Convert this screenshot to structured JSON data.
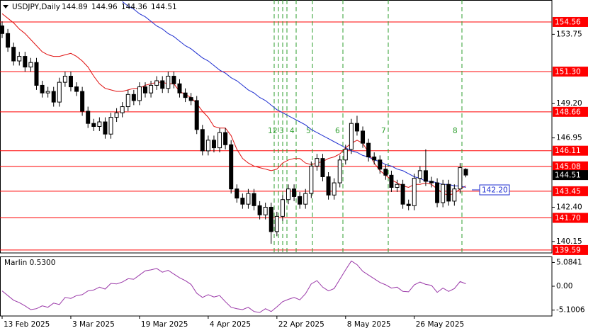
{
  "header": {
    "symbol": "USDJPY,Daily",
    "ohlc": [
      144.89,
      144.96,
      144.36,
      144.51
    ]
  },
  "chart_data": [
    {
      "type": "candlestick",
      "categories": [
        "13 Feb 2025",
        null,
        null,
        null,
        null,
        null,
        null,
        null,
        null,
        null,
        null,
        null,
        "3 Mar 2025",
        null,
        null,
        null,
        null,
        null,
        null,
        null,
        null,
        null,
        null,
        null,
        "19 Mar 2025",
        null,
        null,
        null,
        null,
        null,
        null,
        null,
        null,
        null,
        null,
        null,
        "4 Apr 2025",
        null,
        null,
        null,
        null,
        null,
        null,
        null,
        null,
        null,
        null,
        null,
        "22 Apr 2025",
        null,
        null,
        null,
        null,
        null,
        null,
        null,
        null,
        null,
        null,
        null,
        "8 May 2025",
        null,
        null,
        null,
        null,
        null,
        null,
        null,
        null,
        null,
        null,
        null,
        "26 May 2025",
        null,
        null,
        null,
        null,
        null,
        null,
        null,
        null,
        null
      ],
      "open": [
        154.3,
        153.8,
        152.9,
        152.0,
        152.3,
        151.6,
        151.9,
        150.4,
        149.9,
        150.0,
        149.3,
        150.6,
        151.0,
        150.3,
        150.0,
        148.7,
        147.9,
        147.7,
        148.0,
        147.2,
        148.3,
        148.6,
        149.0,
        149.8,
        149.4,
        150.3,
        149.9,
        150.4,
        150.7,
        150.2,
        151.0,
        150.5,
        149.9,
        149.6,
        149.4,
        147.5,
        146.1,
        146.8,
        146.3,
        147.3,
        146.5,
        143.6,
        143.0,
        142.6,
        143.3,
        142.5,
        141.9,
        142.4,
        140.8,
        141.8,
        142.9,
        143.6,
        143.1,
        142.6,
        143.3,
        145.1,
        145.6,
        144.4,
        143.2,
        144.0,
        145.5,
        146.2,
        147.9,
        147.4,
        146.6,
        145.7,
        145.5,
        144.9,
        144.5,
        143.7,
        143.9,
        142.6,
        142.5,
        144.3,
        144.8,
        144.1,
        144.0,
        142.7,
        143.9,
        142.8,
        143.6,
        144.89
      ],
      "high": [
        154.6,
        154.1,
        153.2,
        152.6,
        152.6,
        152.2,
        152.2,
        150.7,
        150.3,
        150.3,
        150.9,
        151.3,
        151.3,
        150.6,
        150.3,
        149.0,
        148.2,
        148.3,
        148.3,
        148.6,
        148.9,
        149.3,
        150.1,
        150.1,
        150.6,
        150.6,
        150.7,
        151.0,
        151.0,
        151.3,
        151.3,
        150.8,
        150.2,
        149.9,
        149.7,
        147.8,
        147.1,
        147.1,
        147.6,
        147.6,
        146.8,
        143.9,
        143.3,
        143.6,
        143.6,
        142.8,
        142.7,
        142.7,
        142.1,
        143.2,
        143.9,
        143.9,
        143.4,
        143.6,
        145.4,
        145.9,
        145.9,
        144.7,
        144.3,
        145.8,
        146.5,
        148.2,
        148.4,
        147.7,
        146.9,
        146.0,
        145.8,
        145.2,
        144.8,
        144.2,
        144.2,
        142.9,
        144.6,
        145.1,
        146.2,
        144.4,
        144.3,
        144.2,
        144.2,
        143.9,
        145.3,
        144.96
      ],
      "low": [
        153.5,
        152.6,
        151.7,
        151.7,
        151.3,
        151.3,
        150.1,
        149.6,
        149.6,
        149.0,
        149.0,
        150.3,
        150.0,
        149.7,
        148.4,
        147.6,
        147.4,
        147.4,
        146.9,
        146.9,
        148.0,
        148.3,
        148.7,
        149.1,
        149.1,
        149.6,
        149.6,
        150.1,
        149.9,
        149.9,
        150.2,
        149.6,
        149.3,
        149.1,
        147.2,
        145.8,
        145.8,
        146.0,
        146.0,
        146.2,
        143.3,
        142.7,
        142.3,
        142.3,
        142.2,
        141.6,
        141.6,
        140.0,
        140.5,
        141.5,
        142.6,
        142.8,
        142.3,
        142.3,
        143.0,
        144.8,
        144.1,
        142.9,
        142.9,
        143.7,
        145.2,
        145.9,
        147.1,
        146.3,
        145.4,
        145.2,
        144.6,
        144.2,
        143.4,
        143.4,
        142.3,
        142.2,
        142.2,
        144.0,
        143.8,
        143.7,
        142.4,
        142.4,
        142.5,
        142.5,
        143.3,
        144.36
      ],
      "close": [
        153.8,
        152.9,
        152.0,
        152.3,
        151.6,
        151.9,
        150.4,
        149.9,
        150.0,
        149.3,
        150.6,
        151.0,
        150.3,
        150.0,
        148.7,
        147.9,
        147.7,
        148.0,
        147.2,
        148.3,
        148.6,
        149.0,
        149.8,
        149.4,
        150.3,
        149.9,
        150.4,
        150.7,
        150.2,
        151.0,
        150.5,
        149.9,
        149.6,
        149.4,
        147.5,
        146.1,
        146.8,
        146.3,
        147.3,
        146.5,
        143.6,
        143.0,
        142.6,
        143.3,
        142.5,
        141.9,
        142.4,
        140.8,
        141.8,
        142.9,
        143.6,
        143.1,
        142.6,
        143.3,
        145.1,
        145.6,
        144.4,
        143.2,
        144.0,
        145.5,
        146.2,
        147.9,
        147.4,
        146.6,
        145.7,
        145.5,
        144.9,
        144.5,
        143.7,
        143.9,
        142.6,
        142.5,
        144.3,
        144.8,
        144.1,
        144.0,
        142.7,
        143.9,
        142.8,
        143.6,
        145.0,
        144.51
      ],
      "overlays": [
        {
          "color": "#e01010",
          "values": [
            155.1,
            154.8,
            154.5,
            154.1,
            153.8,
            153.4,
            153.0,
            152.6,
            152.4,
            152.3,
            152.3,
            152.4,
            152.5,
            152.3,
            152.0,
            151.6,
            151.0,
            150.5,
            150.2,
            150.1,
            150.0,
            150.0,
            150.1,
            150.2,
            150.2,
            150.4,
            150.5,
            150.6,
            150.6,
            150.5,
            150.5,
            150.0,
            149.8,
            149.6,
            149.2,
            148.7,
            148.3,
            147.7,
            147.6,
            147.6,
            147.1,
            146.2,
            145.6,
            145.3,
            145.1,
            145.0,
            144.9,
            144.8,
            144.9,
            145.3,
            145.5,
            145.6,
            145.6,
            145.3,
            145.2,
            145.3,
            145.4,
            145.6,
            145.7,
            145.9,
            146.3,
            146.6,
            146.8,
            146.6,
            146.0,
            145.3,
            144.8,
            144.5,
            144.2,
            144.0,
            143.8,
            143.7,
            143.9,
            143.9,
            144.0,
            143.9,
            143.6,
            143.3,
            143.2,
            143.3,
            143.6,
            143.8
          ]
        },
        {
          "color": "#1f2fd0",
          "values": [
            null,
            null,
            null,
            null,
            null,
            null,
            null,
            null,
            null,
            null,
            null,
            null,
            null,
            null,
            null,
            null,
            null,
            null,
            null,
            null,
            null,
            155.9,
            155.6,
            155.4,
            155.1,
            154.9,
            154.6,
            154.3,
            154.1,
            153.8,
            153.6,
            153.3,
            153.0,
            152.8,
            152.5,
            152.2,
            152.0,
            151.7,
            151.4,
            151.2,
            150.9,
            150.7,
            150.4,
            150.1,
            149.9,
            149.6,
            149.4,
            149.1,
            148.8,
            148.6,
            148.4,
            148.2,
            148.0,
            147.8,
            147.5,
            147.3,
            147.1,
            146.9,
            146.7,
            146.5,
            146.3,
            146.1,
            146.0,
            145.8,
            145.7,
            145.5,
            145.4,
            145.2,
            145.1,
            144.9,
            144.8,
            144.6,
            144.4,
            144.3,
            144.1,
            144.1,
            144.0,
            143.9,
            143.9,
            143.8,
            143.8,
            143.7
          ]
        }
      ],
      "levels": [
        154.56,
        {
          "value": 151.3,
          "label": "151.30"
        },
        148.66,
        146.11,
        145.08,
        143.45,
        {
          "value": 141.7,
          "label": "141.70"
        },
        139.59
      ],
      "level_color": "#ff0000",
      "current_price": 144.51,
      "annotation": "142.20",
      "wave_labels": [
        "1",
        "2",
        "3",
        "4",
        "5",
        "6",
        "7",
        "8"
      ],
      "wave_color": "#2e9e2e",
      "up_color": "#ffffff",
      "down_color": "#000000",
      "ylim": [
        139.4,
        156.0
      ],
      "yticks": [
        153.75,
        {
          "value": 149.2,
          "label": "149.20"
        },
        146.95,
        {
          "value": 142.4,
          "label": "142.40"
        },
        140.15
      ]
    },
    {
      "type": "line",
      "title": "Marlin 0.5300",
      "color": "#9a38a8",
      "values": [
        -1.0,
        -2.0,
        -3.0,
        -3.5,
        -4.2,
        -5.0,
        -4.8,
        -4.2,
        -4.5,
        -3.6,
        -3.9,
        -2.4,
        -2.6,
        -2.0,
        -1.8,
        -1.0,
        -0.8,
        -0.2,
        -0.6,
        0.6,
        0.5,
        0.9,
        1.6,
        1.5,
        2.4,
        3.3,
        3.5,
        3.8,
        3.0,
        3.4,
        2.6,
        1.8,
        1.2,
        0.4,
        -1.5,
        -2.4,
        -1.8,
        -2.3,
        -2.0,
        -3.3,
        -4.5,
        -4.8,
        -5.0,
        -4.5,
        -5.4,
        -5.6,
        -4.8,
        -5.4,
        -4.4,
        -3.3,
        -2.8,
        -2.4,
        -2.9,
        -1.6,
        0.5,
        1.2,
        -0.2,
        -1.0,
        -0.5,
        1.5,
        3.5,
        5.4,
        4.6,
        3.2,
        2.4,
        1.6,
        0.8,
        0.3,
        -0.4,
        -0.2,
        -1.1,
        -1.2,
        0.3,
        0.9,
        0.4,
        0.2,
        -1.3,
        -0.4,
        -1.1,
        -0.5,
        1.0,
        0.53
      ],
      "ylim": [
        -6.36,
        6.36
      ],
      "yticks": [
        5.0841,
        {
          "value": 0,
          "label": "0.00"
        },
        -5.1006
      ]
    }
  ]
}
